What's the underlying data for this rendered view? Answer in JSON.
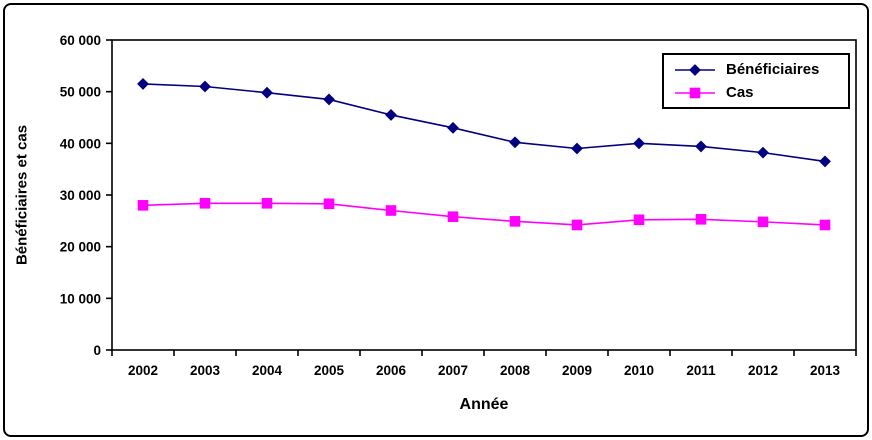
{
  "figure": {
    "y_axis_title": "Bénéficiaires et cas",
    "x_axis_title": "Année"
  },
  "chart_data": {
    "type": "line",
    "title": "",
    "xlabel": "Année",
    "ylabel": "Bénéficiaires et cas",
    "categories": [
      "2002",
      "2003",
      "2004",
      "2005",
      "2006",
      "2007",
      "2008",
      "2009",
      "2010",
      "2011",
      "2012",
      "2013"
    ],
    "series": [
      {
        "name": "Bénéficiaires",
        "color": "#000080",
        "marker": "diamond",
        "values": [
          51500,
          51000,
          49800,
          48500,
          45500,
          43000,
          40200,
          39000,
          40000,
          39400,
          38200,
          36500
        ]
      },
      {
        "name": "Cas",
        "color": "#FF00FF",
        "marker": "square",
        "values": [
          28000,
          28400,
          28400,
          28300,
          27000,
          25800,
          24900,
          24200,
          25200,
          25300,
          24800,
          24200
        ]
      }
    ],
    "ylim": [
      0,
      60000
    ],
    "ytick_step": 10000,
    "ytick_labels": [
      "0",
      "10 000",
      "20 000",
      "30 000",
      "40 000",
      "50 000",
      "60 000"
    ],
    "grid": false,
    "legend_position": "top-right"
  }
}
